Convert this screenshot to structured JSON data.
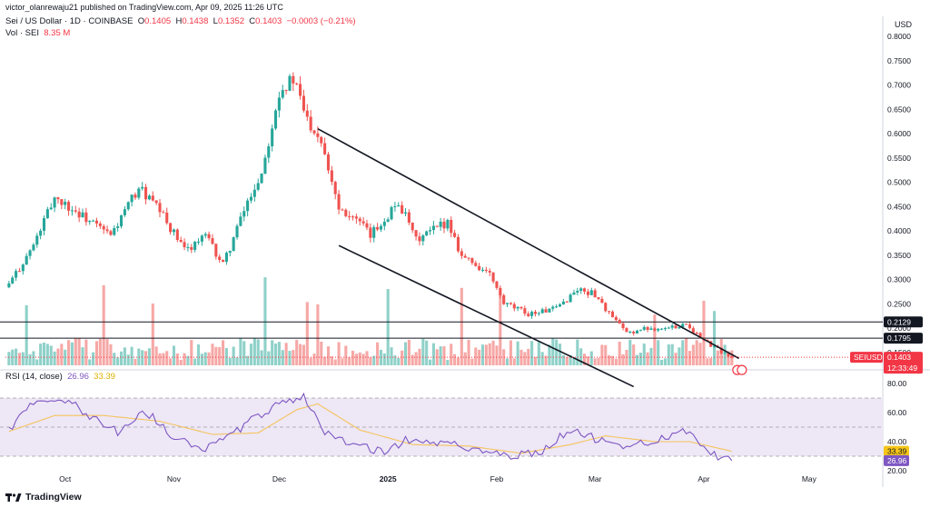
{
  "header": {
    "published": "victor_olanrewaju21 published on TradingView.com, Apr 09, 2025 11:26 UTC",
    "symbol": "Sei / US Dollar · 1D · COINBASE",
    "o_label": "O",
    "o_value": "0.1405",
    "h_label": "H",
    "h_value": "0.1438",
    "l_label": "L",
    "l_value": "0.1352",
    "c_label": "C",
    "c_value": "0.1403",
    "change": "−0.0003 (−0.21%)",
    "vol_label": "Vol · SEI",
    "vol_value": "8.35 M"
  },
  "rsi_header": {
    "label": "RSI (14, close)",
    "rsi_value": "26.96",
    "ma_value": "33.39"
  },
  "brand": {
    "name": "TradingView"
  },
  "colors": {
    "up": "#26a69a",
    "down": "#ef5350",
    "up_vol": "#8fd1c9",
    "down_vol": "#f6a8a6",
    "rsi": "#7e57c2",
    "rsi_ma": "#f5c45e",
    "rsi_band": "#ede7f6",
    "tag_red": "#f23645",
    "tag_black": "#131722"
  },
  "chart_data": [
    {
      "type": "candlestick",
      "title": "Sei / US Dollar · 1D · COINBASE",
      "currency": "USD",
      "ylim": [
        0.12,
        0.8
      ],
      "y_ticks": [
        "0.8000",
        "0.7500",
        "0.7000",
        "0.6500",
        "0.6000",
        "0.5500",
        "0.5000",
        "0.4500",
        "0.4000",
        "0.3500",
        "0.3000",
        "0.2500",
        "0.2000",
        "0.1500"
      ],
      "x_ticks": [
        "Oct",
        "Nov",
        "Dec",
        "2025",
        "Feb",
        "Mar",
        "Apr",
        "May"
      ],
      "x_range": [
        "2024-09-14",
        "2025-05-22"
      ],
      "anchors": [
        {
          "date": "2024-09-15",
          "close": 0.29
        },
        {
          "date": "2024-09-22",
          "close": 0.37
        },
        {
          "date": "2024-09-28",
          "close": 0.47
        },
        {
          "date": "2024-10-06",
          "close": 0.43
        },
        {
          "date": "2024-10-14",
          "close": 0.39
        },
        {
          "date": "2024-10-22",
          "close": 0.49
        },
        {
          "date": "2024-10-28",
          "close": 0.44
        },
        {
          "date": "2024-11-04",
          "close": 0.36
        },
        {
          "date": "2024-11-10",
          "close": 0.39
        },
        {
          "date": "2024-11-15",
          "close": 0.33
        },
        {
          "date": "2024-11-22",
          "close": 0.46
        },
        {
          "date": "2024-11-26",
          "close": 0.52
        },
        {
          "date": "2024-12-01",
          "close": 0.69
        },
        {
          "date": "2024-12-05",
          "close": 0.71
        },
        {
          "date": "2024-12-09",
          "close": 0.63
        },
        {
          "date": "2024-12-13",
          "close": 0.59
        },
        {
          "date": "2024-12-18",
          "close": 0.45
        },
        {
          "date": "2024-12-22",
          "close": 0.43
        },
        {
          "date": "2024-12-27",
          "close": 0.39
        },
        {
          "date": "2025-01-04",
          "close": 0.46
        },
        {
          "date": "2025-01-09",
          "close": 0.38
        },
        {
          "date": "2025-01-18",
          "close": 0.42
        },
        {
          "date": "2025-01-22",
          "close": 0.35
        },
        {
          "date": "2025-01-30",
          "close": 0.31
        },
        {
          "date": "2025-02-03",
          "close": 0.25
        },
        {
          "date": "2025-02-10",
          "close": 0.23
        },
        {
          "date": "2025-02-18",
          "close": 0.24
        },
        {
          "date": "2025-02-24",
          "close": 0.28
        },
        {
          "date": "2025-03-01",
          "close": 0.27
        },
        {
          "date": "2025-03-05",
          "close": 0.23
        },
        {
          "date": "2025-03-10",
          "close": 0.19
        },
        {
          "date": "2025-03-16",
          "close": 0.2
        },
        {
          "date": "2025-03-22",
          "close": 0.2
        },
        {
          "date": "2025-03-27",
          "close": 0.21
        },
        {
          "date": "2025-03-31",
          "close": 0.18
        },
        {
          "date": "2025-04-04",
          "close": 0.16
        },
        {
          "date": "2025-04-09",
          "close": 0.1403
        }
      ],
      "levels": [
        0.2129,
        0.1795
      ],
      "trendlines": [
        {
          "from": {
            "date": "2024-12-12",
            "price": 0.61
          },
          "to": {
            "date": "2025-04-11",
            "price": 0.138
          }
        },
        {
          "from": {
            "date": "2024-12-18",
            "price": 0.37
          },
          "to": {
            "date": "2025-03-12",
            "price": 0.08
          }
        }
      ],
      "price_labels": [
        "0.2129",
        "0.1795"
      ],
      "last": {
        "symbol": "SEIUSD",
        "price": "0.1403",
        "countdown": "12:33:49"
      },
      "volume": {
        "label": "Vol · SEI",
        "last": "8.35 M"
      }
    },
    {
      "type": "line",
      "title": "RSI (14, close)",
      "ylim": [
        20,
        80
      ],
      "y_ticks": [
        "80.00",
        "60.00",
        "40.00",
        "20.00"
      ],
      "band": [
        30,
        70
      ],
      "midline": 50,
      "series": [
        {
          "name": "RSI",
          "last": 26.96
        },
        {
          "name": "RSI MA",
          "last": 33.39
        }
      ],
      "rsi_anchors": [
        {
          "date": "2024-09-15",
          "v": 47
        },
        {
          "date": "2024-09-22",
          "v": 68
        },
        {
          "date": "2024-09-30",
          "v": 71
        },
        {
          "date": "2024-10-08",
          "v": 58
        },
        {
          "date": "2024-10-16",
          "v": 47
        },
        {
          "date": "2024-10-24",
          "v": 61
        },
        {
          "date": "2024-11-01",
          "v": 43
        },
        {
          "date": "2024-11-10",
          "v": 36
        },
        {
          "date": "2024-11-16",
          "v": 42
        },
        {
          "date": "2024-11-25",
          "v": 58
        },
        {
          "date": "2024-12-02",
          "v": 68
        },
        {
          "date": "2024-12-08",
          "v": 71
        },
        {
          "date": "2024-12-14",
          "v": 47
        },
        {
          "date": "2024-12-22",
          "v": 38
        },
        {
          "date": "2024-12-30",
          "v": 33
        },
        {
          "date": "2025-01-08",
          "v": 43
        },
        {
          "date": "2025-01-18",
          "v": 38
        },
        {
          "date": "2025-01-26",
          "v": 36
        },
        {
          "date": "2025-02-04",
          "v": 30
        },
        {
          "date": "2025-02-14",
          "v": 33
        },
        {
          "date": "2025-02-22",
          "v": 49
        },
        {
          "date": "2025-03-01",
          "v": 42
        },
        {
          "date": "2025-03-10",
          "v": 36
        },
        {
          "date": "2025-03-18",
          "v": 41
        },
        {
          "date": "2025-03-27",
          "v": 48
        },
        {
          "date": "2025-04-02",
          "v": 33
        },
        {
          "date": "2025-04-09",
          "v": 26.96
        }
      ],
      "ma_anchors": [
        {
          "date": "2024-09-15",
          "v": 47
        },
        {
          "date": "2024-09-28",
          "v": 58
        },
        {
          "date": "2024-10-12",
          "v": 58
        },
        {
          "date": "2024-10-28",
          "v": 54
        },
        {
          "date": "2024-11-12",
          "v": 45
        },
        {
          "date": "2024-11-25",
          "v": 46
        },
        {
          "date": "2024-12-06",
          "v": 62
        },
        {
          "date": "2024-12-12",
          "v": 66
        },
        {
          "date": "2024-12-24",
          "v": 48
        },
        {
          "date": "2025-01-08",
          "v": 38
        },
        {
          "date": "2025-01-24",
          "v": 37
        },
        {
          "date": "2025-02-08",
          "v": 32
        },
        {
          "date": "2025-02-22",
          "v": 38
        },
        {
          "date": "2025-03-04",
          "v": 44
        },
        {
          "date": "2025-03-18",
          "v": 40
        },
        {
          "date": "2025-03-28",
          "v": 40
        },
        {
          "date": "2025-04-09",
          "v": 33.39
        }
      ]
    }
  ]
}
